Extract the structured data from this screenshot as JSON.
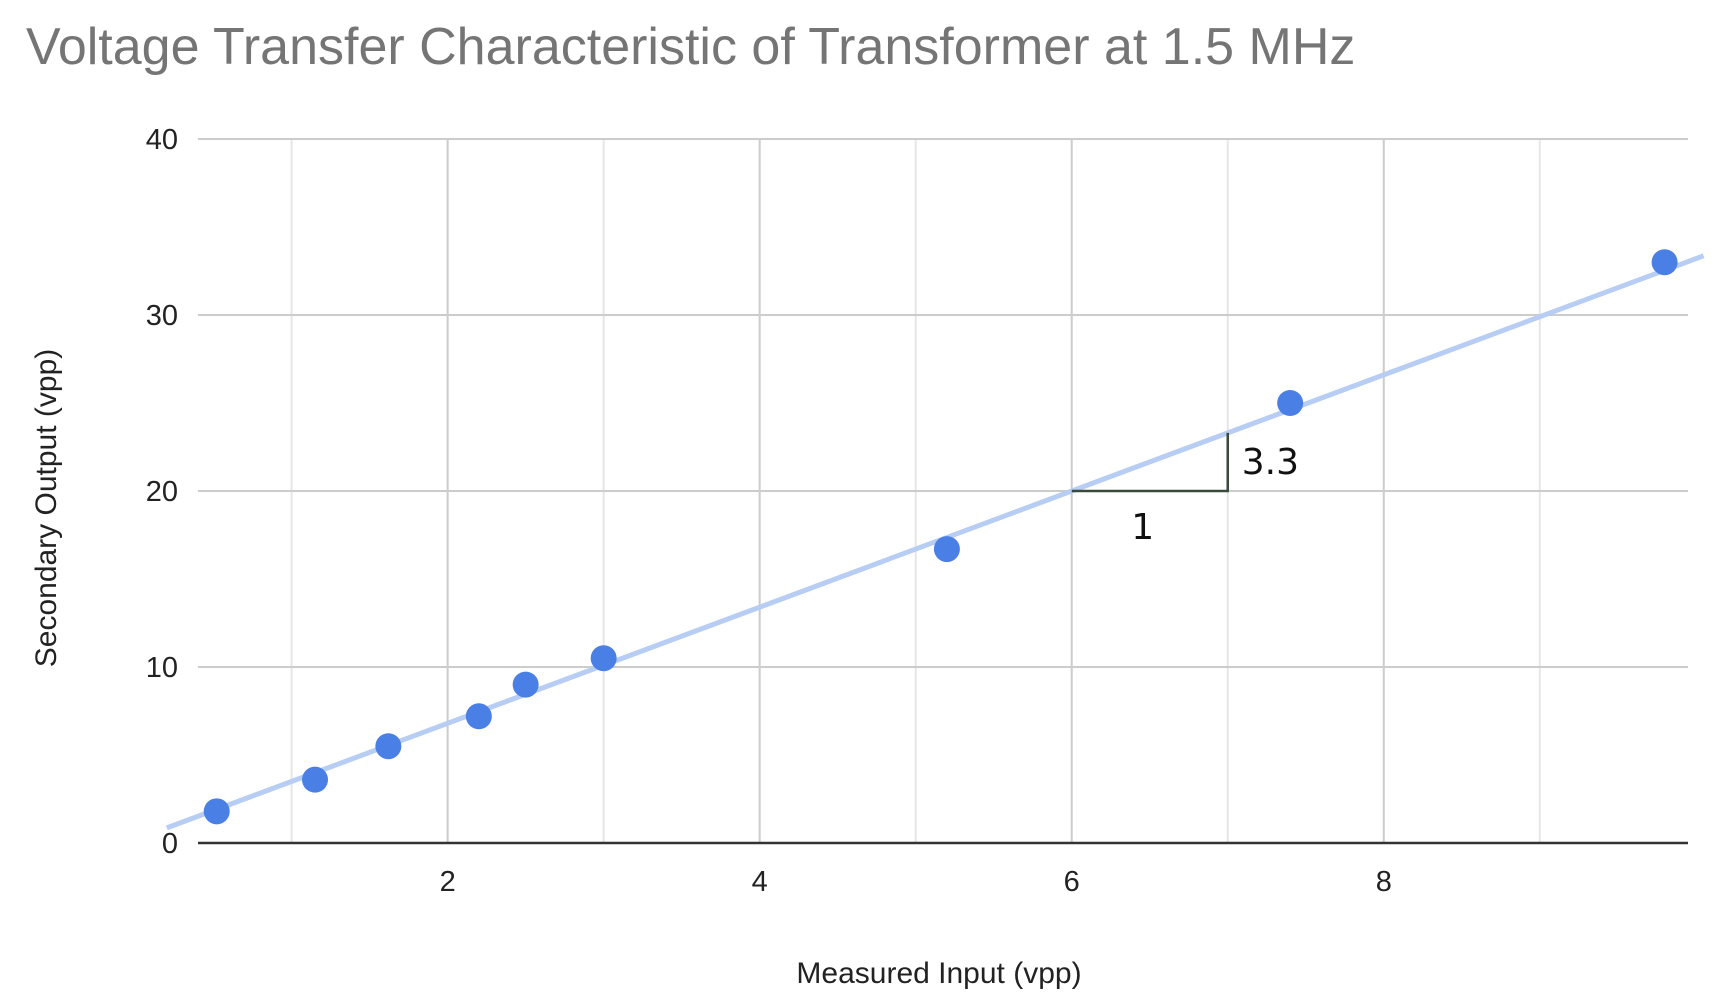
{
  "chart_data": {
    "type": "scatter",
    "title": "Voltage Transfer Characteristic of Transformer at 1.5 MHz",
    "xlabel": "Measured Input (vpp)",
    "ylabel": "Secondary Output (vpp)",
    "xlim": [
      0.4,
      9.95
    ],
    "ylim": [
      0,
      40
    ],
    "x_ticks": [
      2,
      4,
      6,
      8
    ],
    "x_minor_ticks": [
      1,
      3,
      5,
      7,
      9
    ],
    "y_ticks": [
      0,
      10,
      20,
      30,
      40
    ],
    "grid": true,
    "legend": "none",
    "colors": {
      "points": "#4a7fe6",
      "trendline": "#b7cdf4"
    },
    "series": [
      {
        "points": [
          {
            "x": 0.52,
            "y": 1.8
          },
          {
            "x": 1.15,
            "y": 3.6
          },
          {
            "x": 1.62,
            "y": 5.5
          },
          {
            "x": 2.2,
            "y": 7.2
          },
          {
            "x": 2.5,
            "y": 9.0
          },
          {
            "x": 3.0,
            "y": 10.5
          },
          {
            "x": 5.2,
            "y": 16.7
          },
          {
            "x": 7.4,
            "y": 25.0
          },
          {
            "x": 9.8,
            "y": 33.0
          }
        ]
      }
    ],
    "trendline": {
      "slope": 3.3,
      "intercept": 0.2
    },
    "annotations": [
      {
        "text": "1",
        "note": "slope triangle run",
        "x_from": 6,
        "x_to": 7,
        "y": 20
      },
      {
        "text": "3.3",
        "note": "slope triangle rise",
        "x": 7,
        "y_from": 20,
        "y_to": 23.3
      }
    ]
  }
}
